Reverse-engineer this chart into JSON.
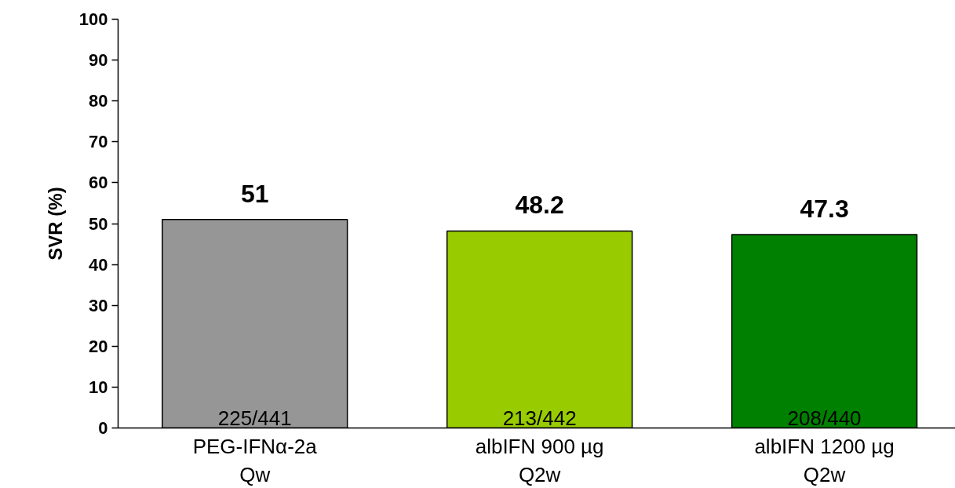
{
  "chart_data": {
    "type": "bar",
    "ylabel": "SVR (%)",
    "categories": [
      "PEG-IFNα-2a\nQw",
      "albIFN 900 µg\nQ2w",
      "albIFN 1200 µg\nQ2w"
    ],
    "values": [
      51,
      48.2,
      47.3
    ],
    "colors": [
      "#969696",
      "#99cc00",
      "#008000"
    ],
    "ylim": [
      0,
      100
    ],
    "yticks": [
      0,
      10,
      20,
      30,
      40,
      50,
      60,
      70,
      80,
      90,
      100
    ],
    "data_labels": true,
    "grid": false,
    "annotations": [
      {
        "text": "225/441",
        "x": "PEG-IFNα-2a\nQw",
        "y": 0
      },
      {
        "text": "213/442",
        "x": "albIFN 900 µg\nQ2w",
        "y": 0
      },
      {
        "text": "208/440",
        "x": "albIFN 1200 µg\nQ2w",
        "y": 0
      }
    ]
  }
}
